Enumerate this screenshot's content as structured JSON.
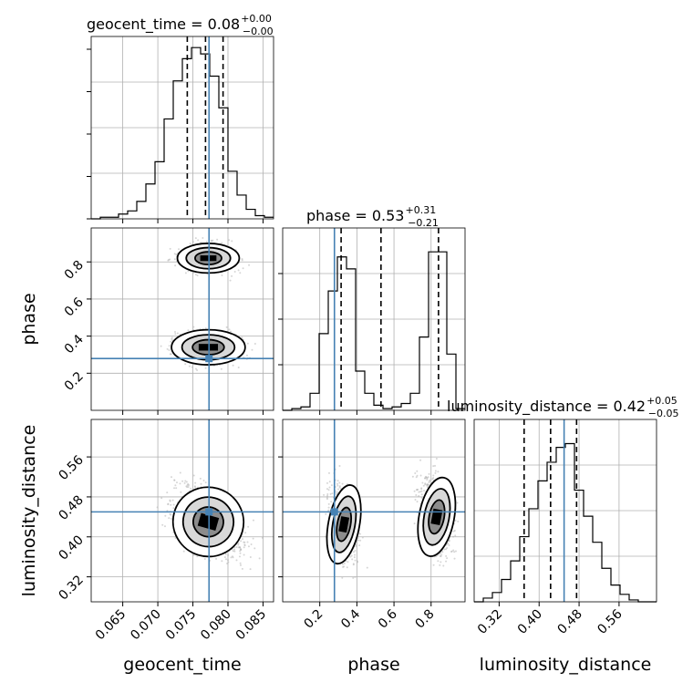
{
  "chart_data": {
    "type": "corner",
    "parameters": [
      "geocent_time",
      "phase",
      "luminosity_distance"
    ],
    "titles": [
      {
        "label": "geocent_time = 0.08",
        "sup": "+0.00",
        "sub": "−0.00"
      },
      {
        "label": "phase = 0.53",
        "sup": "+0.31",
        "sub": "−0.21"
      },
      {
        "label": "luminosity_distance = 0.42",
        "sup": "+0.05",
        "sub": "−0.05"
      }
    ],
    "ranges": {
      "geocent_time": [
        0.0605,
        0.0865
      ],
      "phase": [
        0.0,
        0.983
      ],
      "luminosity_distance": [
        0.27,
        0.635
      ]
    },
    "ticks": {
      "geocent_time": [
        "0.065",
        "0.070",
        "0.075",
        "0.080",
        "0.085"
      ],
      "phase": [
        "0.2",
        "0.4",
        "0.6",
        "0.8"
      ],
      "luminosity_distance": [
        "0.32",
        "0.40",
        "0.48",
        "0.56"
      ]
    },
    "truths": {
      "geocent_time": 0.0773,
      "phase": 0.279,
      "luminosity_distance": 0.45
    },
    "quantiles": {
      "geocent_time": [
        0.0742,
        0.0768,
        0.0793
      ],
      "phase": [
        0.315,
        0.53,
        0.84
      ],
      "luminosity_distance": [
        0.37,
        0.423,
        0.475
      ]
    },
    "histograms": {
      "geocent_time": {
        "edges": [
          0.0605,
          0.0618,
          0.0631,
          0.0644,
          0.0657,
          0.067,
          0.0683,
          0.0696,
          0.0709,
          0.0722,
          0.0735,
          0.0748,
          0.0761,
          0.0774,
          0.0787,
          0.08,
          0.0813,
          0.0826,
          0.0839,
          0.0852,
          0.0865
        ],
        "counts": [
          0,
          1,
          1,
          3,
          5,
          11,
          22,
          36,
          63,
          87,
          101,
          108,
          104,
          90,
          70,
          30,
          15,
          6,
          2,
          1
        ],
        "max": 115
      },
      "phase": {
        "edges": [
          0.0,
          0.0492,
          0.0983,
          0.1475,
          0.1966,
          0.2458,
          0.2949,
          0.3441,
          0.3932,
          0.4424,
          0.4915,
          0.5407,
          0.5898,
          0.639,
          0.6881,
          0.7373,
          0.7864,
          0.8356,
          0.8847,
          0.9339,
          0.983
        ],
        "counts": [
          0,
          1,
          2,
          10,
          45,
          70,
          90,
          83,
          23,
          10,
          3,
          1,
          2,
          4,
          10,
          43,
          93,
          93,
          33,
          1
        ],
        "max": 107
      },
      "luminosity_distance": {
        "edges": [
          0.27,
          0.28825,
          0.3065,
          0.32475,
          0.343,
          0.36125,
          0.3795,
          0.39775,
          0.416,
          0.43425,
          0.4525,
          0.47075,
          0.489,
          0.50725,
          0.5255,
          0.54375,
          0.562,
          0.58025,
          0.5985,
          0.61675,
          0.635
        ],
        "counts": [
          0,
          2,
          5,
          12,
          22,
          35,
          50,
          65,
          75,
          83,
          85,
          60,
          46,
          32,
          18,
          9,
          4,
          1,
          0,
          0
        ],
        "max": 98
      }
    },
    "colors": {
      "truth": "#4682b4",
      "hist": "#000000",
      "grid": "#b0b0b0",
      "points": "#b5b5b5"
    }
  }
}
